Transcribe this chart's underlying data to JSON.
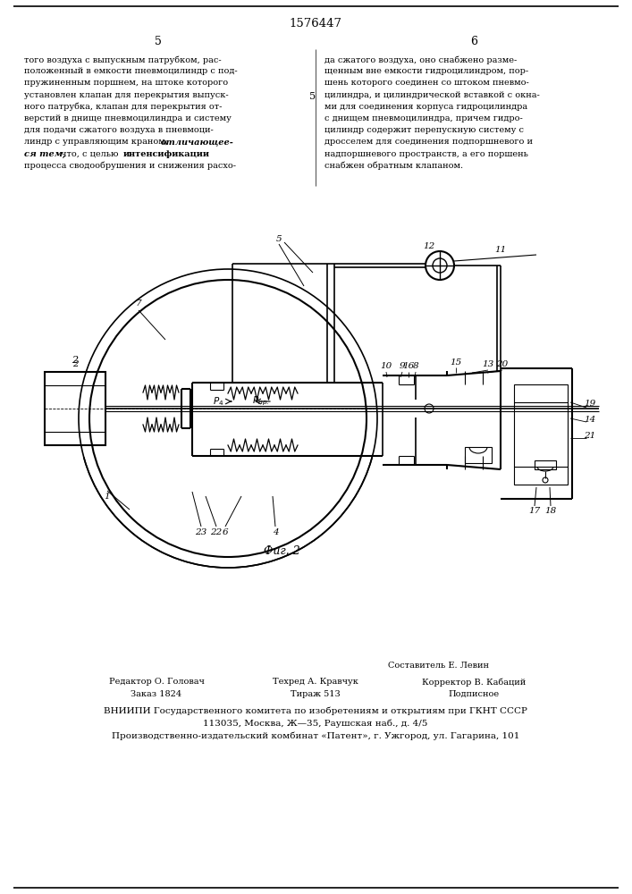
{
  "background_color": "#ffffff",
  "patent_number": "1576447",
  "page_left": "5",
  "page_right": "6",
  "top_text_left": [
    "того воздуха с выпускным патрубком, рас-",
    "положенный в емкости пневмоцилиндр с под-",
    "пружиненным поршнем, на штоке которого",
    "установлен клапан для перекрытия выпуск-",
    "ного патрубка, клапан для перекрытия от-",
    "верстий в днище пневмоцилиндра и систему",
    "для подачи сжатого воздуха в пневмоци-",
    "линдр с управляющим краном, отличающее-",
    "ся тем, что, с целью интенсификации",
    "процесса сводообрушения и снижения расхо-"
  ],
  "italic_lines": [
    7,
    8
  ],
  "top_text_right": [
    "да сжатого воздуха, оно снабжено разме-",
    "щенным вне емкости гидроцилиндром, пор-",
    "шень которого соединен со штоком пневмо-",
    "цилиндра, и цилиндрической вставкой с окна-",
    "ми для соединения корпуса гидроцилиндра",
    "с днищем пневмоцилиндра, причем гидро-",
    "цилиндр содержит перепускную систему с",
    "дросселем для соединения подпоршневого и",
    "надпоршневого пространств, а его поршень",
    "снабжен обратным клапаном."
  ],
  "fig_label": "Фиг. 2",
  "credit_composer": "Составитель Е. Левин",
  "credit_editor": "Редактор О. Головач",
  "credit_tech": "Техред А. Кравчук",
  "credit_corrector": "Корректор В. Кабаций",
  "credit_order": "Заказ 1824",
  "credit_copies": "Тираж 513",
  "credit_sub": "Подписное",
  "credit_org": "ВНИИПИ Государственного комитета по изобретениям и открытиям при ГКНТ СССР",
  "credit_addr1": "113035, Москва, Ж—35, Раушская наб., д. 4/5",
  "credit_addr2": "Производственно-издательский комбинат «Патент», г. Ужгород, ул. Гагарина, 101"
}
